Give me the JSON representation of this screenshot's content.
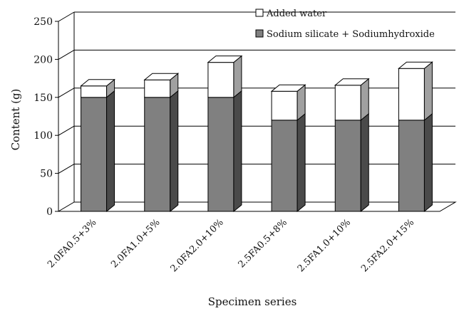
{
  "chart_data": {
    "type": "bar",
    "stacked": true,
    "three_d": true,
    "categories": [
      "2.0FA0.5+3%",
      "2.0FA1.0+5%",
      "2.0FA2.0+10%",
      "2.5FA0.5+8%",
      "2.5FA1.0+10%",
      "2.5FA2.0+15%"
    ],
    "series": [
      {
        "name": "Sodium silicate + Sodiumhydroxide",
        "values": [
          150,
          150,
          150,
          120,
          120,
          120
        ],
        "color": "#808080"
      },
      {
        "name": "Added water",
        "values": [
          15,
          23,
          46,
          38,
          46,
          68
        ],
        "color": "#ffffff"
      }
    ],
    "title": "",
    "xlabel": "Specimen series",
    "ylabel": "Content (g)",
    "ylim": [
      0,
      250
    ],
    "yticks": [
      0,
      50,
      100,
      150,
      200,
      250
    ],
    "grid": true,
    "legend": "top-right"
  }
}
